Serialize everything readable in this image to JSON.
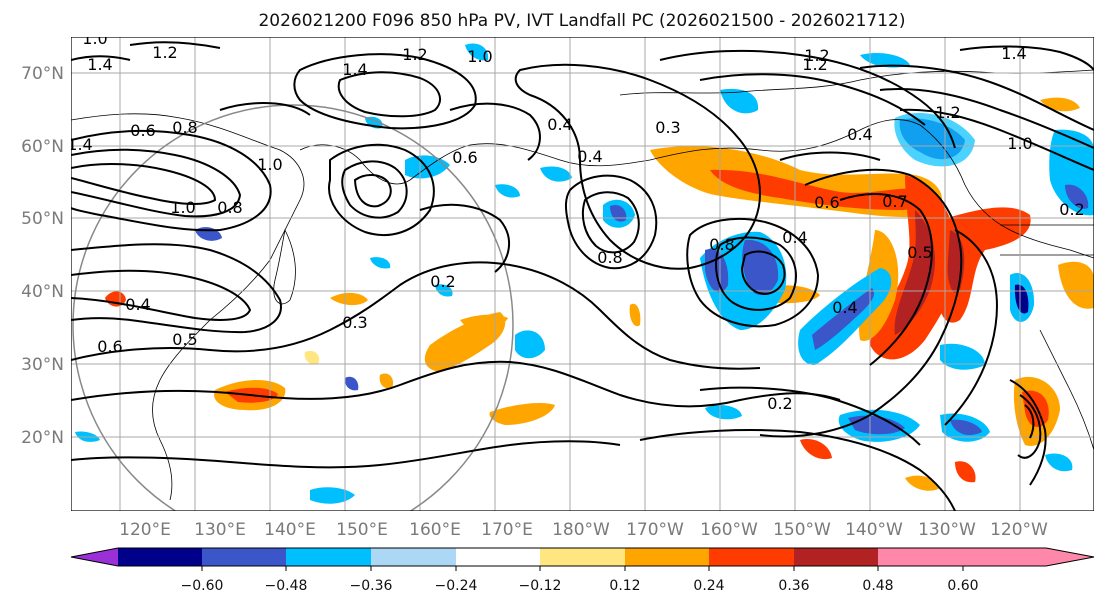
{
  "title": "2026021200 F096 850 hPa PV, IVT Landfall PC (2026021500 - 2026021712)",
  "lat_labels": [
    "70°N",
    "60°N",
    "50°N",
    "40°N",
    "30°N",
    "20°N"
  ],
  "lon_labels": [
    "120°E",
    "130°E",
    "140°E",
    "150°E",
    "160°E",
    "170°E",
    "180°W",
    "170°W",
    "160°W",
    "150°W",
    "140°W",
    "130°W",
    "120°W"
  ],
  "colorbar": {
    "ticks": [
      "−0.60",
      "−0.48",
      "−0.36",
      "−0.24",
      "−0.12",
      "0.12",
      "0.24",
      "0.36",
      "0.48",
      "0.60"
    ],
    "colors": [
      "#9b30d9",
      "#00008b",
      "#3a56c8",
      "#00bfff",
      "#add8f5",
      "#ffffff",
      "#ffe680",
      "#ffa500",
      "#ff3c00",
      "#b22222",
      "#ff88aa"
    ]
  },
  "map_layers": {
    "ivt_pc_fill": "shaded principal-component anomaly",
    "pv_contours": "850 hPa potential vorticity (black lines)",
    "gridlines": "every 10 degrees",
    "range_circle": "gray circle over western Pacific"
  },
  "contour_labels": [
    "1.0",
    "1.2",
    "1.4",
    "1.4",
    "1.2",
    "1.0",
    "1.4",
    "0.8",
    "0.6",
    "0.4",
    "1.2",
    "0.3",
    "0.4",
    "0.8",
    "1.0",
    "0.6",
    "0.4",
    "1.2",
    "1.4",
    "1.2",
    "1.0",
    "0.6",
    "0.7",
    "0.8",
    "0.4",
    "0.5",
    "0.4",
    "0.2",
    "0.3",
    "0.2",
    "1.0",
    "0.8",
    "0.6",
    "0.5",
    "0.4",
    "0.2"
  ]
}
